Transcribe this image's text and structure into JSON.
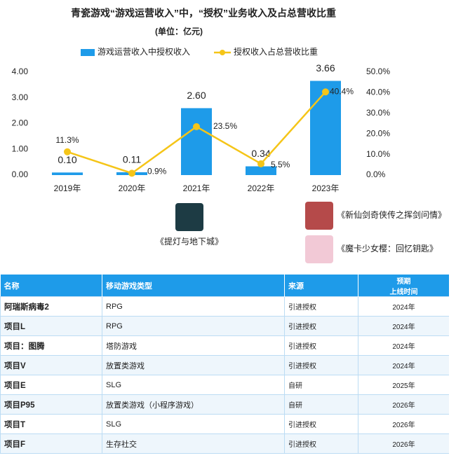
{
  "chart_data": {
    "type": "combo",
    "title": "青瓷游戏“游戏运营收入”中，“授权”业务收入及占总营收比重",
    "subtitle": "(单位：亿元)",
    "categories": [
      "2019年",
      "2020年",
      "2021年",
      "2022年",
      "2023年"
    ],
    "series": [
      {
        "name": "游戏运营收入中授权收入",
        "color": "#1e9be9",
        "type": "bar",
        "values": [
          0.1,
          0.11,
          2.6,
          0.34,
          3.66
        ],
        "value_labels": [
          "0.10",
          "0.11",
          "2.60",
          "0.34",
          "3.66"
        ]
      },
      {
        "name": "授权收入占总营收比重",
        "color": "#f5c518",
        "type": "line",
        "axis": "y2",
        "values": [
          11.3,
          0.9,
          23.5,
          5.5,
          40.4
        ],
        "value_labels": [
          "11.3%",
          "0.9%",
          "23.5%",
          "5.5%",
          "40.4%"
        ]
      }
    ],
    "ylim": [
      0,
      4
    ],
    "yticks": [
      {
        "value": 0,
        "label": "0.00"
      },
      {
        "value": 1,
        "label": "1.00"
      },
      {
        "value": 2,
        "label": "2.00"
      },
      {
        "value": 3,
        "label": "3.00"
      },
      {
        "value": 4,
        "label": "4.00"
      }
    ],
    "y2lim": [
      0,
      50
    ],
    "y2ticks": [
      {
        "value": 0,
        "label": "0.0%"
      },
      {
        "value": 10,
        "label": "10.0%"
      },
      {
        "value": 20,
        "label": "20.0%"
      },
      {
        "value": 30,
        "label": "30.0%"
      },
      {
        "value": 40,
        "label": "40.0%"
      },
      {
        "value": 50,
        "label": "50.0%"
      }
    ],
    "legend": "top"
  },
  "games": [
    "《提灯与地下城》",
    "《新仙剑奇侠传之挥剑问情》",
    "《魔卡少女樱：回忆钥匙》"
  ],
  "table": {
    "header": [
      "名称",
      "移动游戏类型",
      "来源",
      [
        "预期",
        "上线时间"
      ]
    ],
    "rows": [
      [
        "阿瑞斯病毒2",
        "RPG",
        "引进授权",
        "2024年"
      ],
      [
        "项目L",
        "RPG",
        "引进授权",
        "2024年"
      ],
      [
        "项目：图腾",
        "塔防游戏",
        "引进授权",
        "2024年"
      ],
      [
        "项目V",
        "放置类游戏",
        "引进授权",
        "2024年"
      ],
      [
        "项目E",
        "SLG",
        "自研",
        "2025年"
      ],
      [
        "项目P95",
        "放置类游戏（小程序游戏）",
        "自研",
        "2026年"
      ],
      [
        "项目T",
        "SLG",
        "引进授权",
        "2026年"
      ],
      [
        "项目F",
        "生存社交",
        "引进授权",
        "2026年"
      ]
    ]
  }
}
